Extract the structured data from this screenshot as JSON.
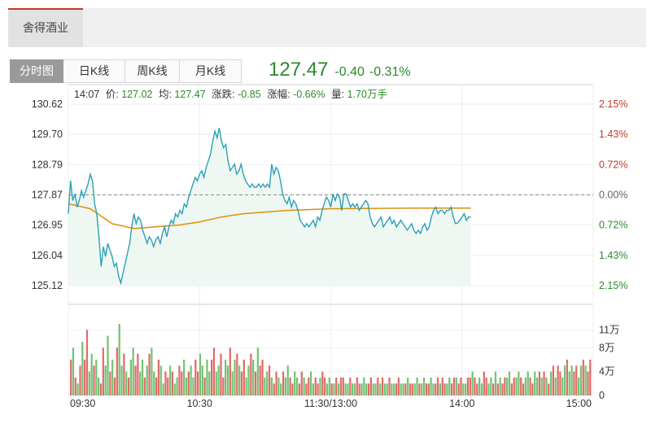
{
  "stock": {
    "name": "舍得酒业"
  },
  "tabs": [
    {
      "label": "分时图",
      "active": true
    },
    {
      "label": "日K线",
      "active": false
    },
    {
      "label": "周K线",
      "active": false
    },
    {
      "label": "月K线",
      "active": false
    }
  ],
  "quote": {
    "price": "127.47",
    "change": "-0.40",
    "change_pct": "-0.31%"
  },
  "tooltip": {
    "time": "14:07",
    "price_label": "价:",
    "price": "127.02",
    "avg_label": "均:",
    "avg": "127.47",
    "change_label": "涨跌:",
    "change": "-0.85",
    "pct_label": "涨幅:",
    "pct": "-0.66%",
    "vol_label": "量:",
    "vol": "1.70万手"
  },
  "colors": {
    "up": "#c0392b",
    "down": "#2a8a2a",
    "price_line": "#2aa0b8",
    "avg_line": "#e08e0b",
    "area_fill": "#eef7f1"
  },
  "chart_data": [
    {
      "type": "line",
      "title": "",
      "ylim": [
        125.12,
        130.62
      ],
      "y_ticks_left": [
        "130.62",
        "129.70",
        "128.79",
        "127.87",
        "126.95",
        "126.04",
        "125.12"
      ],
      "y_ticks_right": [
        "2.15%",
        "1.43%",
        "0.72%",
        "0.00%",
        "0.72%",
        "1.43%",
        "2.15%"
      ],
      "reference": 127.87,
      "x_ticks": [
        "09:30",
        "10:30",
        "11:30/13:00",
        "14:00",
        "15:00"
      ],
      "x_minutes": [
        0,
        60,
        120,
        180,
        240
      ],
      "series": [
        {
          "role": "price",
          "points": [
            [
              0,
              127.3
            ],
            [
              1,
              128.3
            ],
            [
              2,
              127.7
            ],
            [
              3,
              127.9
            ],
            [
              4,
              127.5
            ],
            [
              5,
              127.7
            ],
            [
              6,
              128.0
            ],
            [
              7,
              127.8
            ],
            [
              8,
              128.0
            ],
            [
              9,
              128.2
            ],
            [
              10,
              128.5
            ],
            [
              11,
              128.3
            ],
            [
              12,
              127.6
            ],
            [
              13,
              127.3
            ],
            [
              14,
              126.6
            ],
            [
              15,
              125.7
            ],
            [
              16,
              126.3
            ],
            [
              17,
              126.0
            ],
            [
              18,
              126.4
            ],
            [
              19,
              126.2
            ],
            [
              20,
              126.0
            ],
            [
              21,
              125.7
            ],
            [
              22,
              125.8
            ],
            [
              23,
              125.4
            ],
            [
              24,
              125.2
            ],
            [
              25,
              125.5
            ],
            [
              26,
              125.8
            ],
            [
              27,
              126.1
            ],
            [
              28,
              126.4
            ],
            [
              29,
              126.9
            ],
            [
              30,
              127.3
            ],
            [
              31,
              127.0
            ],
            [
              32,
              127.2
            ],
            [
              33,
              127.1
            ],
            [
              34,
              126.8
            ],
            [
              35,
              126.6
            ],
            [
              36,
              126.4
            ],
            [
              37,
              126.6
            ],
            [
              38,
              126.5
            ],
            [
              39,
              126.3
            ],
            [
              40,
              126.5
            ],
            [
              41,
              126.6
            ],
            [
              42,
              126.4
            ],
            [
              43,
              126.7
            ],
            [
              44,
              126.9
            ],
            [
              45,
              126.6
            ],
            [
              46,
              126.9
            ],
            [
              47,
              127.1
            ],
            [
              48,
              127.0
            ],
            [
              49,
              127.3
            ],
            [
              50,
              127.2
            ],
            [
              51,
              127.4
            ],
            [
              52,
              127.3
            ],
            [
              53,
              127.6
            ],
            [
              54,
              127.5
            ],
            [
              55,
              127.8
            ],
            [
              56,
              128.0
            ],
            [
              57,
              128.2
            ],
            [
              58,
              128.4
            ],
            [
              59,
              128.3
            ],
            [
              60,
              128.5
            ],
            [
              61,
              128.6
            ],
            [
              62,
              128.4
            ],
            [
              63,
              128.7
            ],
            [
              64,
              128.9
            ],
            [
              65,
              129.1
            ],
            [
              66,
              129.5
            ],
            [
              67,
              129.8
            ],
            [
              68,
              129.6
            ],
            [
              69,
              129.9
            ],
            [
              70,
              129.5
            ],
            [
              71,
              129.3
            ],
            [
              72,
              129.4
            ],
            [
              73,
              128.9
            ],
            [
              74,
              128.6
            ],
            [
              75,
              128.7
            ],
            [
              76,
              128.8
            ],
            [
              77,
              128.5
            ],
            [
              78,
              128.6
            ],
            [
              79,
              128.8
            ],
            [
              80,
              128.5
            ],
            [
              81,
              128.3
            ],
            [
              82,
              128.2
            ],
            [
              83,
              128.1
            ],
            [
              84,
              128.2
            ],
            [
              85,
              128.1
            ],
            [
              86,
              128.1
            ],
            [
              87,
              128.2
            ],
            [
              88,
              128.1
            ],
            [
              89,
              128.2
            ],
            [
              90,
              128.1
            ],
            [
              91,
              128.2
            ],
            [
              92,
              128.1
            ],
            [
              93,
              128.8
            ],
            [
              94,
              128.5
            ],
            [
              95,
              128.7
            ],
            [
              96,
              128.6
            ],
            [
              97,
              128.3
            ],
            [
              98,
              127.9
            ],
            [
              99,
              127.7
            ],
            [
              100,
              127.6
            ],
            [
              101,
              127.8
            ],
            [
              102,
              127.5
            ],
            [
              103,
              127.7
            ],
            [
              104,
              127.6
            ],
            [
              105,
              127.4
            ],
            [
              106,
              127.1
            ],
            [
              107,
              127.0
            ],
            [
              108,
              126.9
            ],
            [
              109,
              127.0
            ],
            [
              110,
              126.9
            ],
            [
              111,
              127.0
            ],
            [
              112,
              127.1
            ],
            [
              113,
              126.9
            ],
            [
              114,
              127.2
            ],
            [
              115,
              127.1
            ],
            [
              116,
              127.4
            ],
            [
              117,
              127.6
            ],
            [
              118,
              127.8
            ],
            [
              119,
              127.7
            ],
            [
              120,
              127.5
            ],
            [
              121,
              127.9
            ],
            [
              122,
              127.7
            ],
            [
              123,
              127.9
            ],
            [
              124,
              127.8
            ],
            [
              125,
              127.4
            ],
            [
              126,
              127.9
            ],
            [
              127,
              127.9
            ],
            [
              128,
              127.7
            ],
            [
              129,
              127.5
            ],
            [
              130,
              127.6
            ],
            [
              131,
              127.5
            ],
            [
              132,
              127.6
            ],
            [
              133,
              127.4
            ],
            [
              134,
              127.5
            ],
            [
              135,
              127.6
            ],
            [
              136,
              127.7
            ],
            [
              137,
              127.6
            ],
            [
              138,
              127.2
            ],
            [
              139,
              127.0
            ],
            [
              140,
              126.9
            ],
            [
              141,
              127.0
            ],
            [
              142,
              127.1
            ],
            [
              143,
              127.2
            ],
            [
              144,
              126.9
            ],
            [
              145,
              127.0
            ],
            [
              146,
              127.1
            ],
            [
              147,
              127.2
            ],
            [
              148,
              127.0
            ],
            [
              149,
              127.1
            ],
            [
              150,
              126.9
            ],
            [
              151,
              127.0
            ],
            [
              152,
              127.1
            ],
            [
              153,
              127.0
            ],
            [
              154,
              126.9
            ],
            [
              155,
              126.8
            ],
            [
              156,
              126.9
            ],
            [
              157,
              127.0
            ],
            [
              158,
              126.8
            ],
            [
              159,
              126.7
            ],
            [
              160,
              126.8
            ],
            [
              161,
              126.7
            ],
            [
              162,
              126.9
            ],
            [
              163,
              127.0
            ],
            [
              164,
              126.8
            ],
            [
              165,
              126.9
            ],
            [
              166,
              127.2
            ],
            [
              167,
              127.4
            ],
            [
              168,
              127.5
            ],
            [
              169,
              127.3
            ],
            [
              170,
              127.4
            ],
            [
              171,
              127.4
            ],
            [
              172,
              127.3
            ],
            [
              173,
              127.4
            ],
            [
              174,
              127.4
            ],
            [
              175,
              127.5
            ],
            [
              176,
              127.2
            ],
            [
              177,
              127.0
            ],
            [
              178,
              127.02
            ],
            [
              179,
              127.1
            ],
            [
              180,
              127.2
            ],
            [
              181,
              127.3
            ],
            [
              182,
              127.1
            ],
            [
              183,
              127.2
            ],
            [
              184,
              127.2
            ]
          ]
        },
        {
          "role": "average",
          "points": [
            [
              0,
              127.6
            ],
            [
              10,
              127.45
            ],
            [
              20,
              127.0
            ],
            [
              30,
              126.85
            ],
            [
              40,
              126.9
            ],
            [
              50,
              126.95
            ],
            [
              60,
              127.05
            ],
            [
              70,
              127.2
            ],
            [
              80,
              127.3
            ],
            [
              90,
              127.35
            ],
            [
              100,
              127.4
            ],
            [
              120,
              127.45
            ],
            [
              140,
              127.46
            ],
            [
              160,
              127.47
            ],
            [
              184,
              127.47
            ]
          ]
        }
      ]
    },
    {
      "type": "bar",
      "title": "",
      "unit_label": "万",
      "ylim": [
        0,
        12
      ],
      "y_ticks": [
        "11万",
        "8万",
        "4万",
        "0"
      ],
      "volumes": [
        6,
        8,
        3,
        2,
        5,
        9,
        6,
        11,
        4,
        7,
        5,
        6,
        3,
        2,
        8,
        5,
        10,
        4,
        6,
        3,
        8,
        12,
        5,
        7,
        4,
        3,
        6,
        8,
        5,
        7,
        4,
        6,
        3,
        5,
        7,
        8,
        4,
        3,
        6,
        5,
        2,
        4,
        3,
        5,
        4,
        2,
        3,
        5,
        4,
        6,
        3,
        4,
        5,
        3,
        6,
        4,
        7,
        5,
        3,
        6,
        4,
        6,
        8,
        4,
        5,
        7,
        3,
        6,
        5,
        8,
        4,
        6,
        7,
        5,
        4,
        6,
        3,
        5,
        7,
        6,
        4,
        8,
        5,
        6,
        3,
        4,
        5,
        3,
        2,
        4,
        3,
        2,
        4,
        3,
        5,
        3,
        2,
        4,
        3,
        2,
        4,
        3,
        2,
        3,
        4,
        2,
        3,
        2,
        3,
        4,
        3,
        2,
        3,
        2,
        2,
        3,
        2,
        3,
        3,
        2,
        2,
        3,
        2,
        2,
        3,
        2,
        2,
        3,
        2,
        2,
        3,
        2,
        2,
        3,
        2,
        3,
        2,
        2,
        3,
        2,
        2,
        2,
        3,
        2,
        2,
        2,
        3,
        2,
        2,
        2,
        3,
        2,
        2,
        3,
        2,
        2,
        3,
        2,
        2,
        3,
        2,
        3,
        2,
        2,
        3,
        2,
        3,
        3,
        2,
        3,
        2,
        2,
        3,
        3,
        4,
        3,
        2,
        3,
        2,
        4,
        3,
        2,
        3,
        2,
        4,
        2,
        3,
        2,
        3,
        3,
        4,
        2,
        3,
        3,
        4,
        3,
        2,
        3,
        4,
        3,
        2,
        4,
        3,
        4,
        3,
        4,
        3,
        2,
        4,
        5,
        3,
        5,
        4,
        3,
        5,
        6,
        4,
        5,
        4,
        5,
        3,
        5,
        6,
        5,
        4,
        6
      ],
      "directions": "udududuuddudduudduduuddududduuddududduudduududduuddudduuddudduudduuddudduduuddududuudduduuddudduudduuduudduuduuddududuuddudduuddduuddududdudduudduduuddudduudduuduudduuduudduuduudduuddududuudduudduudduuddud"
    }
  ]
}
